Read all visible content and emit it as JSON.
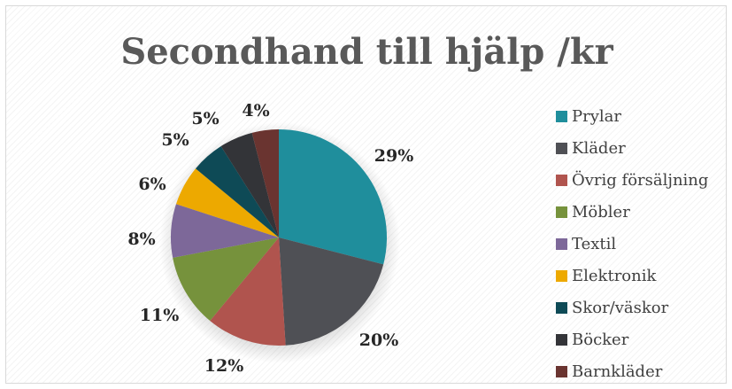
{
  "chart_data": {
    "type": "pie",
    "title": "Secondhand till hjälp /kr",
    "legend_position": "right",
    "slices": [
      {
        "label": "Prylar",
        "value": 29,
        "display": "29%",
        "color": "#1F8E9C"
      },
      {
        "label": "Kläder",
        "value": 20,
        "display": "20%",
        "color": "#4F5055"
      },
      {
        "label": "Övrig försäljning",
        "value": 12,
        "display": "12%",
        "color": "#B0544E"
      },
      {
        "label": "Möbler",
        "value": 11,
        "display": "11%",
        "color": "#76923C"
      },
      {
        "label": "Textil",
        "value": 8,
        "display": "8%",
        "color": "#7D6899"
      },
      {
        "label": "Elektronik",
        "value": 6,
        "display": "6%",
        "color": "#EDA900"
      },
      {
        "label": "Skor/väskor",
        "value": 5,
        "display": "5%",
        "color": "#0E4A56"
      },
      {
        "label": "Böcker",
        "value": 5,
        "display": "5%",
        "color": "#333438"
      },
      {
        "label": "Barnkläder",
        "value": 4,
        "display": "4%",
        "color": "#6A3430"
      }
    ]
  }
}
